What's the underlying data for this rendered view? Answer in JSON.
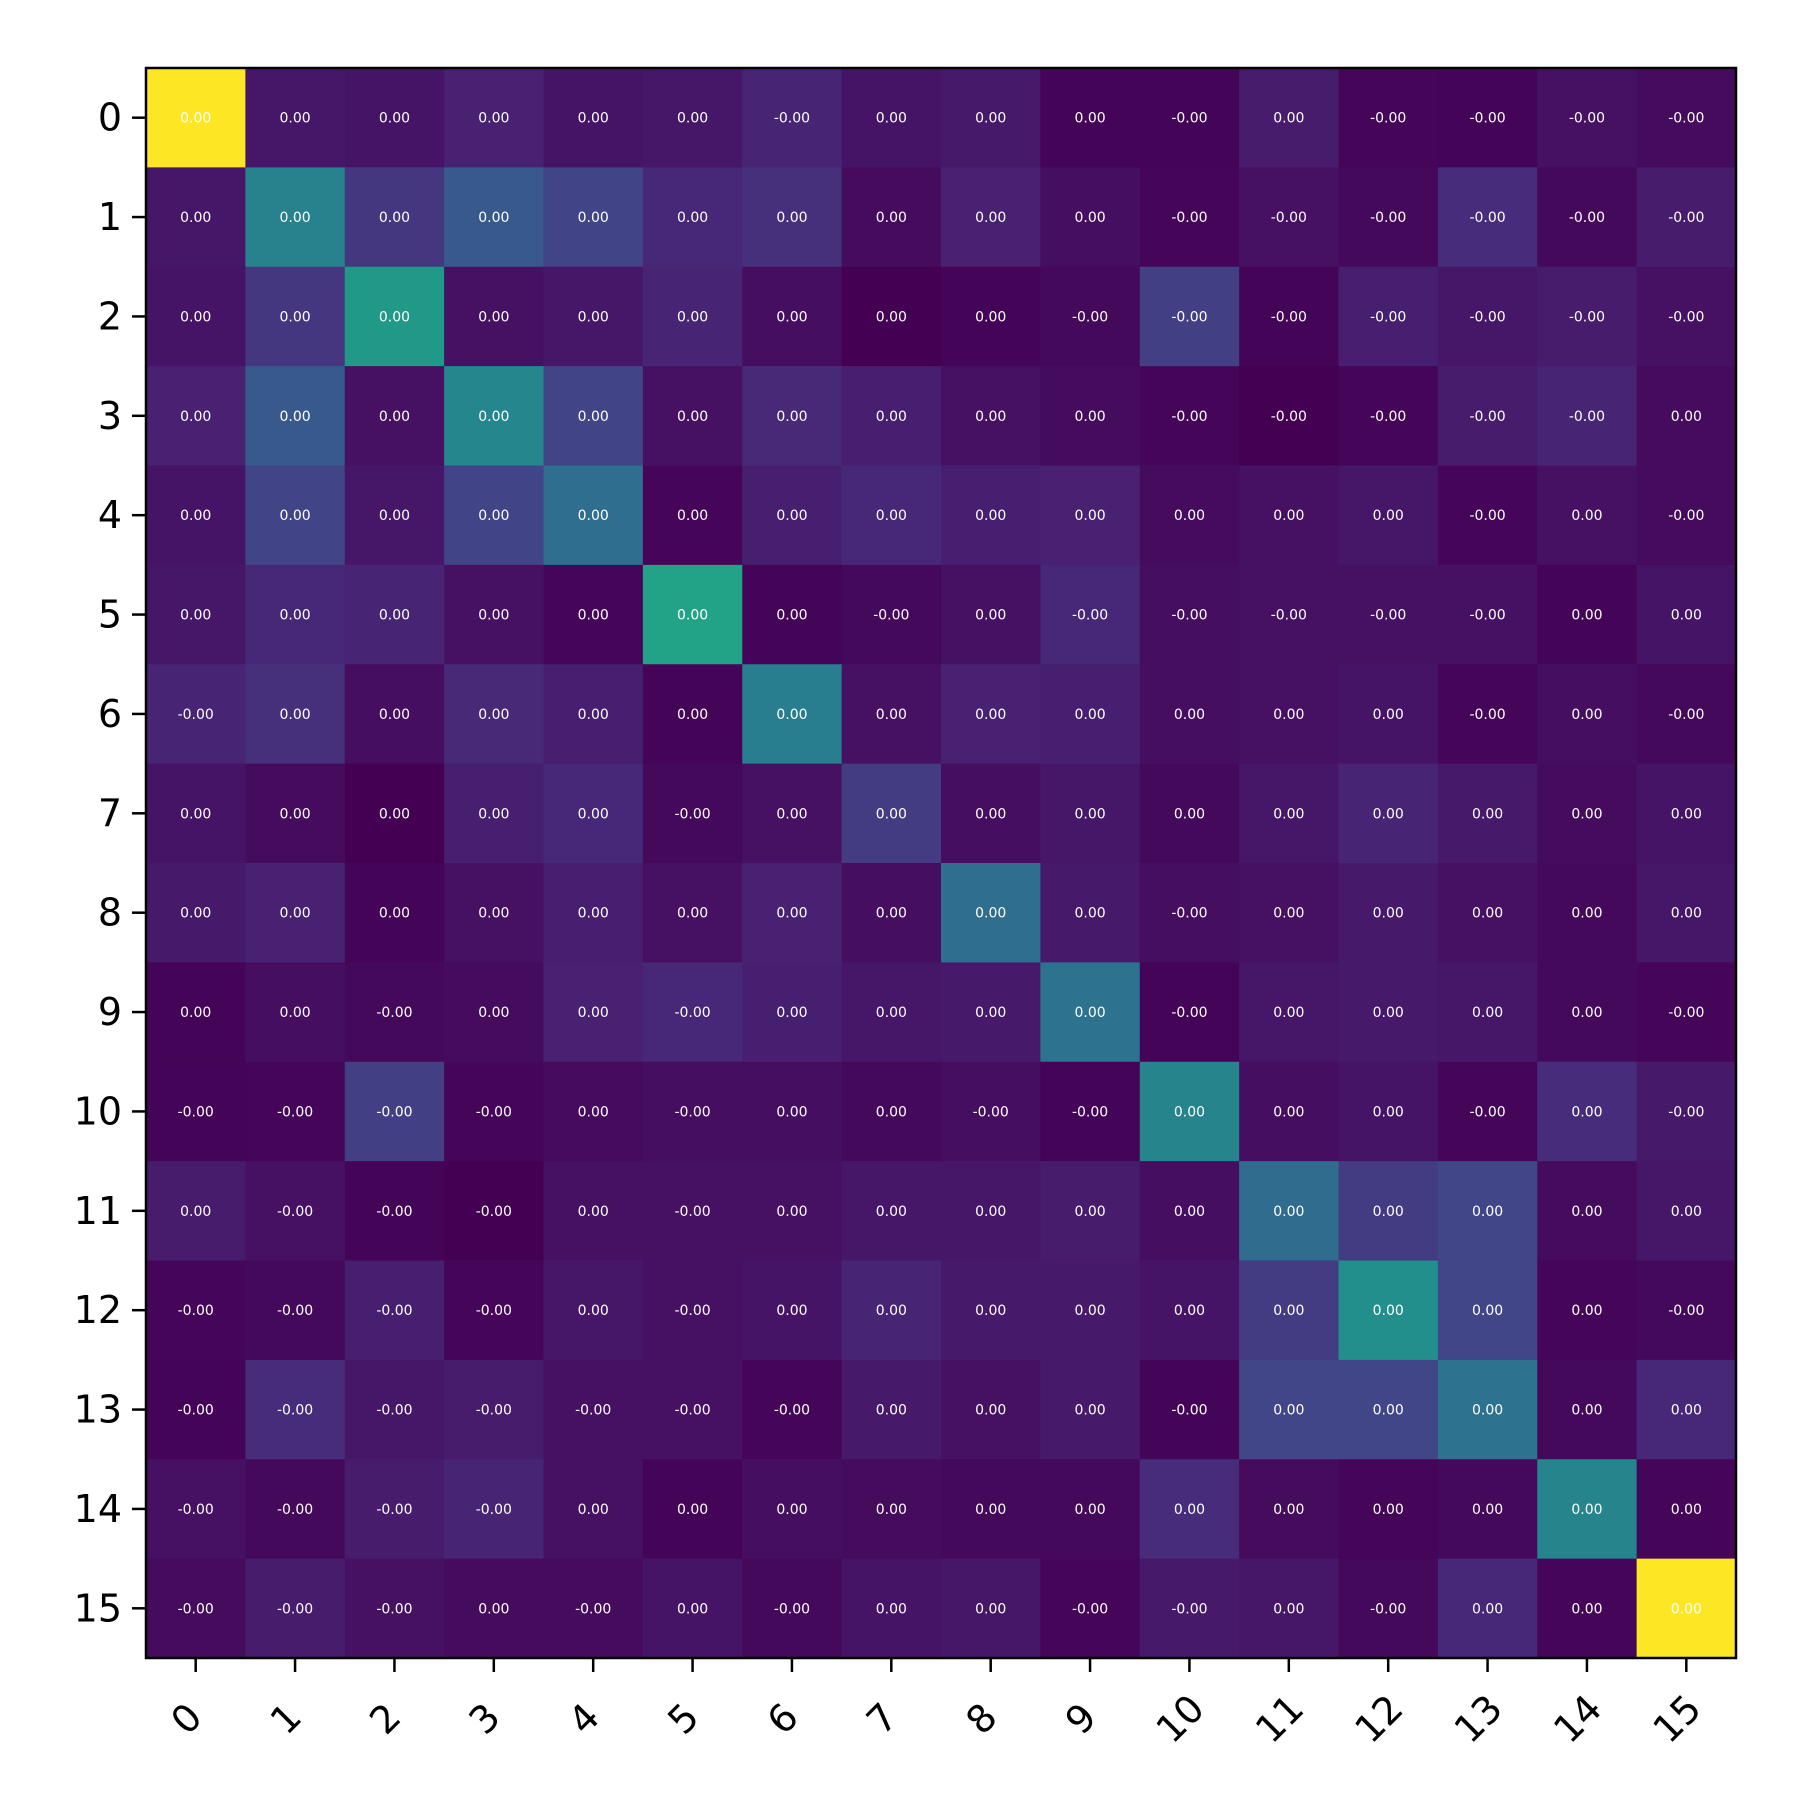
{
  "chart_data": {
    "type": "heatmap",
    "title": "",
    "xlabel": "",
    "ylabel": "",
    "x_tick_labels": [
      "0",
      "1",
      "2",
      "3",
      "4",
      "5",
      "6",
      "7",
      "8",
      "9",
      "10",
      "11",
      "12",
      "13",
      "14",
      "15"
    ],
    "y_tick_labels": [
      "0",
      "1",
      "2",
      "3",
      "4",
      "5",
      "6",
      "7",
      "8",
      "9",
      "10",
      "11",
      "12",
      "13",
      "14",
      "15"
    ],
    "colormap": "viridis",
    "color_range": [
      0,
      1
    ],
    "grid": false,
    "cell_labels": [
      [
        "0.00",
        "0.00",
        "0.00",
        "0.00",
        "0.00",
        "0.00",
        "-0.00",
        "0.00",
        "0.00",
        "0.00",
        "-0.00",
        "0.00",
        "-0.00",
        "-0.00",
        "-0.00",
        "-0.00"
      ],
      [
        "0.00",
        "0.00",
        "0.00",
        "0.00",
        "0.00",
        "0.00",
        "0.00",
        "0.00",
        "0.00",
        "0.00",
        "-0.00",
        "-0.00",
        "-0.00",
        "-0.00",
        "-0.00",
        "-0.00"
      ],
      [
        "0.00",
        "0.00",
        "0.00",
        "0.00",
        "0.00",
        "0.00",
        "0.00",
        "0.00",
        "0.00",
        "-0.00",
        "-0.00",
        "-0.00",
        "-0.00",
        "-0.00",
        "-0.00",
        "-0.00"
      ],
      [
        "0.00",
        "0.00",
        "0.00",
        "0.00",
        "0.00",
        "0.00",
        "0.00",
        "0.00",
        "0.00",
        "0.00",
        "-0.00",
        "-0.00",
        "-0.00",
        "-0.00",
        "-0.00",
        "0.00"
      ],
      [
        "0.00",
        "0.00",
        "0.00",
        "0.00",
        "0.00",
        "0.00",
        "0.00",
        "0.00",
        "0.00",
        "0.00",
        "0.00",
        "0.00",
        "0.00",
        "-0.00",
        "0.00",
        "-0.00"
      ],
      [
        "0.00",
        "0.00",
        "0.00",
        "0.00",
        "0.00",
        "0.00",
        "0.00",
        "-0.00",
        "0.00",
        "-0.00",
        "-0.00",
        "-0.00",
        "-0.00",
        "-0.00",
        "0.00",
        "0.00"
      ],
      [
        "-0.00",
        "0.00",
        "0.00",
        "0.00",
        "0.00",
        "0.00",
        "0.00",
        "0.00",
        "0.00",
        "0.00",
        "0.00",
        "0.00",
        "0.00",
        "-0.00",
        "0.00",
        "-0.00"
      ],
      [
        "0.00",
        "0.00",
        "0.00",
        "0.00",
        "0.00",
        "-0.00",
        "0.00",
        "0.00",
        "0.00",
        "0.00",
        "0.00",
        "0.00",
        "0.00",
        "0.00",
        "0.00",
        "0.00"
      ],
      [
        "0.00",
        "0.00",
        "0.00",
        "0.00",
        "0.00",
        "0.00",
        "0.00",
        "0.00",
        "0.00",
        "0.00",
        "-0.00",
        "0.00",
        "0.00",
        "0.00",
        "0.00",
        "0.00"
      ],
      [
        "0.00",
        "0.00",
        "-0.00",
        "0.00",
        "0.00",
        "-0.00",
        "0.00",
        "0.00",
        "0.00",
        "0.00",
        "-0.00",
        "0.00",
        "0.00",
        "0.00",
        "0.00",
        "-0.00"
      ],
      [
        "-0.00",
        "-0.00",
        "-0.00",
        "-0.00",
        "0.00",
        "-0.00",
        "0.00",
        "0.00",
        "-0.00",
        "-0.00",
        "0.00",
        "0.00",
        "0.00",
        "-0.00",
        "0.00",
        "-0.00"
      ],
      [
        "0.00",
        "-0.00",
        "-0.00",
        "-0.00",
        "0.00",
        "-0.00",
        "0.00",
        "0.00",
        "0.00",
        "0.00",
        "0.00",
        "0.00",
        "0.00",
        "0.00",
        "0.00",
        "0.00"
      ],
      [
        "-0.00",
        "-0.00",
        "-0.00",
        "-0.00",
        "0.00",
        "-0.00",
        "0.00",
        "0.00",
        "0.00",
        "0.00",
        "0.00",
        "0.00",
        "0.00",
        "0.00",
        "0.00",
        "-0.00"
      ],
      [
        "-0.00",
        "-0.00",
        "-0.00",
        "-0.00",
        "-0.00",
        "-0.00",
        "-0.00",
        "0.00",
        "0.00",
        "0.00",
        "-0.00",
        "0.00",
        "0.00",
        "0.00",
        "0.00",
        "0.00"
      ],
      [
        "-0.00",
        "-0.00",
        "-0.00",
        "-0.00",
        "0.00",
        "0.00",
        "0.00",
        "0.00",
        "0.00",
        "0.00",
        "0.00",
        "0.00",
        "0.00",
        "0.00",
        "0.00",
        "0.00"
      ],
      [
        "-0.00",
        "-0.00",
        "-0.00",
        "0.00",
        "-0.00",
        "0.00",
        "-0.00",
        "0.00",
        "0.00",
        "-0.00",
        "-0.00",
        "0.00",
        "-0.00",
        "0.00",
        "0.00",
        "0.00"
      ]
    ],
    "color_values": [
      [
        1.0,
        0.08,
        0.07,
        0.12,
        0.07,
        0.08,
        0.13,
        0.07,
        0.09,
        0.01,
        0.01,
        0.1,
        0.02,
        0.01,
        0.06,
        0.04
      ],
      [
        0.08,
        0.55,
        0.2,
        0.35,
        0.25,
        0.14,
        0.17,
        0.04,
        0.12,
        0.05,
        0.02,
        0.06,
        0.03,
        0.16,
        0.03,
        0.1
      ],
      [
        0.07,
        0.2,
        0.67,
        0.06,
        0.08,
        0.13,
        0.05,
        0.0,
        0.01,
        0.03,
        0.23,
        0.01,
        0.11,
        0.08,
        0.1,
        0.06
      ],
      [
        0.12,
        0.35,
        0.06,
        0.58,
        0.25,
        0.06,
        0.15,
        0.11,
        0.06,
        0.04,
        0.02,
        0.0,
        0.02,
        0.1,
        0.13,
        0.04
      ],
      [
        0.07,
        0.25,
        0.08,
        0.25,
        0.45,
        0.02,
        0.11,
        0.14,
        0.11,
        0.12,
        0.04,
        0.06,
        0.08,
        0.02,
        0.06,
        0.04
      ],
      [
        0.08,
        0.14,
        0.13,
        0.06,
        0.02,
        0.72,
        0.01,
        0.03,
        0.06,
        0.14,
        0.05,
        0.06,
        0.06,
        0.06,
        0.01,
        0.07
      ],
      [
        0.13,
        0.17,
        0.05,
        0.15,
        0.11,
        0.01,
        0.53,
        0.06,
        0.12,
        0.11,
        0.05,
        0.06,
        0.07,
        0.02,
        0.05,
        0.03
      ],
      [
        0.07,
        0.04,
        0.0,
        0.11,
        0.14,
        0.03,
        0.06,
        0.22,
        0.05,
        0.08,
        0.03,
        0.08,
        0.13,
        0.09,
        0.04,
        0.07
      ],
      [
        0.09,
        0.12,
        0.01,
        0.06,
        0.11,
        0.06,
        0.12,
        0.05,
        0.45,
        0.09,
        0.05,
        0.06,
        0.09,
        0.06,
        0.03,
        0.08
      ],
      [
        0.01,
        0.05,
        0.03,
        0.04,
        0.12,
        0.14,
        0.11,
        0.08,
        0.09,
        0.47,
        0.01,
        0.08,
        0.09,
        0.08,
        0.03,
        0.02
      ],
      [
        0.01,
        0.02,
        0.23,
        0.02,
        0.04,
        0.05,
        0.05,
        0.03,
        0.05,
        0.01,
        0.56,
        0.05,
        0.07,
        0.02,
        0.16,
        0.09
      ],
      [
        0.1,
        0.06,
        0.01,
        0.0,
        0.06,
        0.06,
        0.06,
        0.08,
        0.08,
        0.1,
        0.05,
        0.44,
        0.22,
        0.26,
        0.04,
        0.08
      ],
      [
        0.02,
        0.03,
        0.11,
        0.02,
        0.08,
        0.06,
        0.07,
        0.13,
        0.09,
        0.09,
        0.07,
        0.22,
        0.62,
        0.26,
        0.02,
        0.03
      ],
      [
        0.01,
        0.16,
        0.08,
        0.1,
        0.06,
        0.06,
        0.02,
        0.09,
        0.06,
        0.09,
        0.01,
        0.26,
        0.26,
        0.47,
        0.03,
        0.14
      ],
      [
        0.06,
        0.03,
        0.1,
        0.13,
        0.06,
        0.01,
        0.05,
        0.04,
        0.03,
        0.03,
        0.16,
        0.04,
        0.02,
        0.03,
        0.56,
        0.02
      ],
      [
        0.04,
        0.1,
        0.06,
        0.04,
        0.04,
        0.07,
        0.03,
        0.07,
        0.08,
        0.02,
        0.09,
        0.08,
        0.03,
        0.14,
        0.02,
        1.0
      ]
    ]
  }
}
